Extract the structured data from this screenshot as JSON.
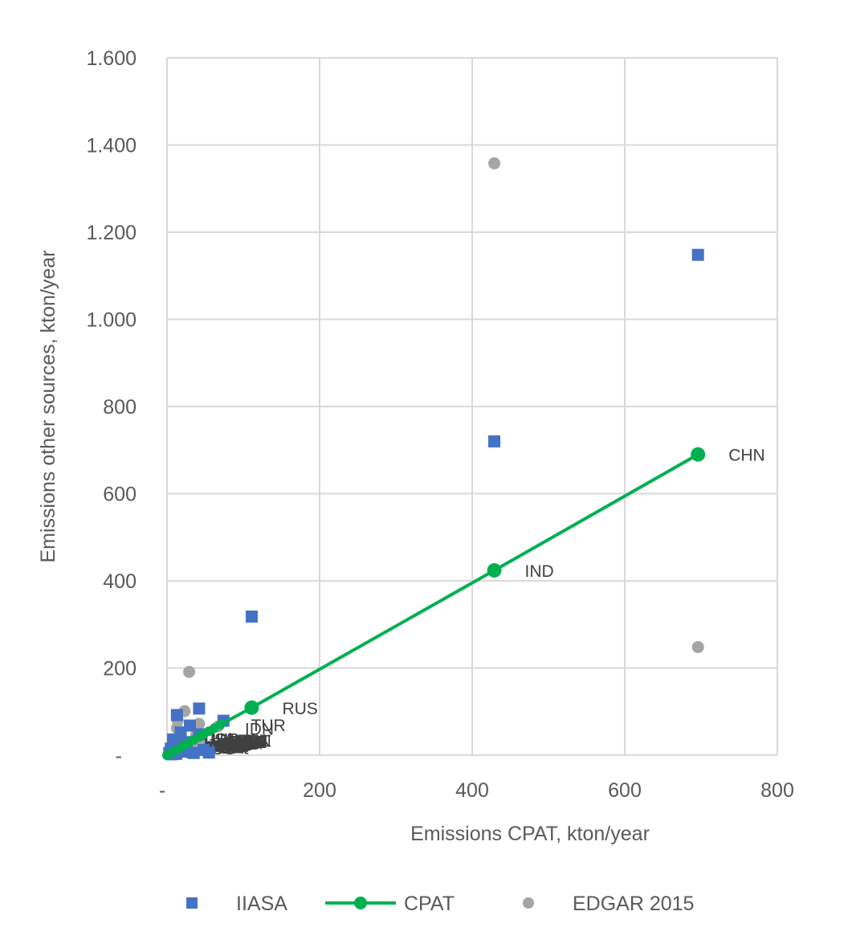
{
  "chart_data": {
    "type": "scatter",
    "title": "",
    "xlabel": "Emissions CPAT, kton/year",
    "ylabel": "Emissions other sources, kton/year",
    "xlim": [
      0,
      800
    ],
    "ylim": [
      0,
      1600
    ],
    "xticks": [
      0,
      200,
      400,
      600,
      800
    ],
    "yticks": [
      0,
      200,
      400,
      600,
      800,
      1000,
      1200,
      1400,
      1600
    ],
    "xtick_labels": [
      "-",
      "200",
      "400",
      "600",
      "800"
    ],
    "ytick_labels": [
      "-",
      "200",
      "400",
      "600",
      "800",
      "1.000",
      "1.200",
      "1.400",
      "1.600"
    ],
    "grid": true,
    "legend_position": "bottom",
    "series": [
      {
        "name": "IIASA",
        "marker": "square",
        "color": "#4472c4",
        "points": [
          [
            696,
            1148
          ],
          [
            429,
            720
          ],
          [
            111,
            318
          ],
          [
            42,
            107
          ],
          [
            74,
            79
          ],
          [
            13,
            92
          ],
          [
            30,
            68
          ],
          [
            18,
            52
          ],
          [
            42,
            48
          ],
          [
            8,
            36
          ],
          [
            26,
            30
          ],
          [
            15,
            25
          ],
          [
            5,
            15
          ],
          [
            9,
            10
          ],
          [
            20,
            8
          ],
          [
            3,
            5
          ],
          [
            35,
            5
          ],
          [
            12,
            3
          ],
          [
            6,
            2
          ],
          [
            48,
            12
          ],
          [
            55,
            6
          ]
        ]
      },
      {
        "name": "CPAT",
        "marker": "circle-line",
        "color": "#00b050",
        "points": [
          [
            696,
            690
          ],
          [
            429,
            424
          ],
          [
            111,
            109
          ],
          [
            70,
            70
          ],
          [
            62,
            62
          ],
          [
            55,
            55
          ],
          [
            48,
            48
          ],
          [
            42,
            42
          ],
          [
            35,
            35
          ],
          [
            28,
            28
          ],
          [
            20,
            20
          ],
          [
            12,
            12
          ],
          [
            5,
            5
          ],
          [
            0,
            0
          ]
        ],
        "labels": [
          {
            "text": "CHN",
            "x": 696,
            "y": 690
          },
          {
            "text": "IND",
            "x": 429,
            "y": 424
          },
          {
            "text": "RUS",
            "x": 111,
            "y": 109
          },
          {
            "text": "TUR",
            "x": 70,
            "y": 70
          },
          {
            "text": "IDN",
            "x": 62,
            "y": 62
          }
        ]
      },
      {
        "name": "EDGAR 2015",
        "marker": "circle",
        "color": "#a5a5a5",
        "points": [
          [
            429,
            1358
          ],
          [
            696,
            248
          ],
          [
            29,
            191
          ],
          [
            23,
            101
          ],
          [
            14,
            80
          ],
          [
            13,
            62
          ],
          [
            42,
            72
          ],
          [
            67,
            66
          ],
          [
            38,
            45
          ],
          [
            42,
            30
          ],
          [
            10,
            30
          ],
          [
            15,
            22
          ],
          [
            20,
            12
          ],
          [
            5,
            18
          ],
          [
            30,
            5
          ],
          [
            8,
            8
          ],
          [
            25,
            15
          ],
          [
            35,
            25
          ],
          [
            50,
            10
          ],
          [
            3,
            3
          ]
        ]
      }
    ]
  },
  "dense_labels": [
    "AUS",
    "BRA",
    "MEX",
    "ZAF",
    "SAU",
    "KOR",
    "IRN",
    "THA",
    "VNM",
    "ARG",
    "PAK",
    "EGY",
    "DEU",
    "JPN",
    "USA",
    "POL",
    "UKR",
    "KAZ",
    "MYS",
    "PHL",
    "CAN",
    "GBR",
    "FRA",
    "ITA",
    "ESP",
    "NGA",
    "DZA",
    "COL",
    "CHL",
    "PER",
    "BGD",
    "IRQ",
    "UZB",
    "ARE",
    "QAT"
  ]
}
